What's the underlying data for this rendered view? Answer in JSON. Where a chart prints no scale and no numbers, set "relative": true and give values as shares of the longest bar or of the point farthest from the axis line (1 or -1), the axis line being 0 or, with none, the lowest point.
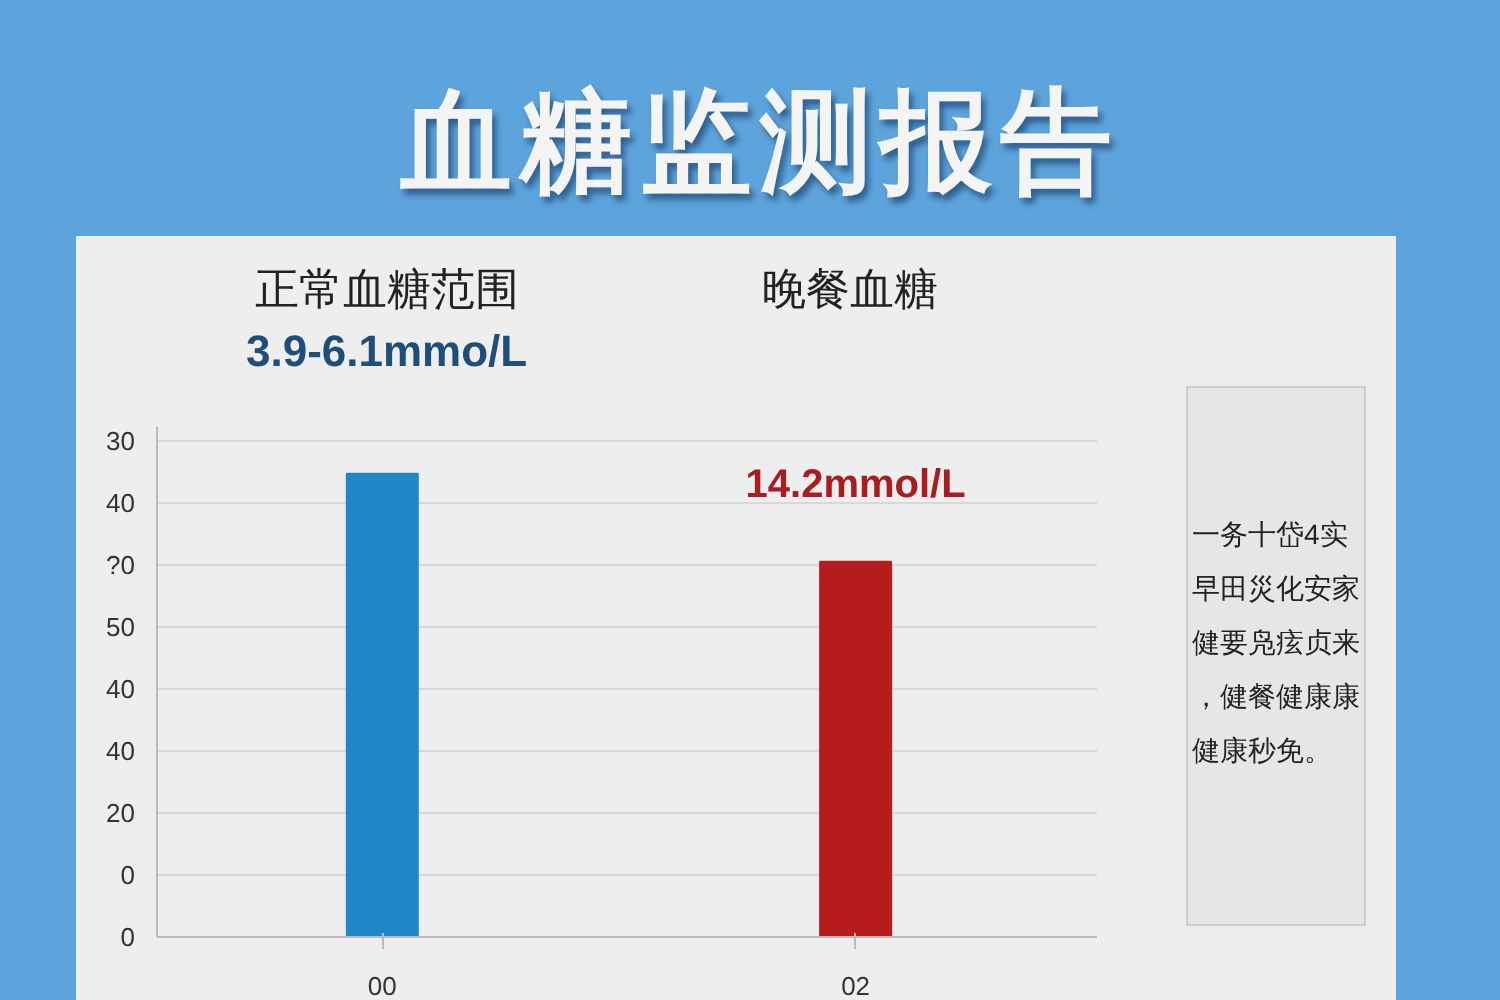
{
  "chart_data": {
    "type": "bar",
    "title": "血糖监测报告",
    "categories": [
      "00",
      "02"
    ],
    "values": [
      1,
      0.81
    ],
    "colors": [
      "#1f86c8",
      "#b71c1c"
    ],
    "relative": true,
    "grid": "y",
    "annotations": [
      "正常血糖范围",
      "3.9-6.1mmo/L",
      "晚餐血糖",
      "14.2mmol/L",
      "一务十岱4实早田災化安家健要凫痃贞来，健餐健康康健康秒免。",
      "0",
      "0",
      "20",
      "40",
      "40",
      "50",
      "?0",
      "40",
      "30"
    ]
  }
}
